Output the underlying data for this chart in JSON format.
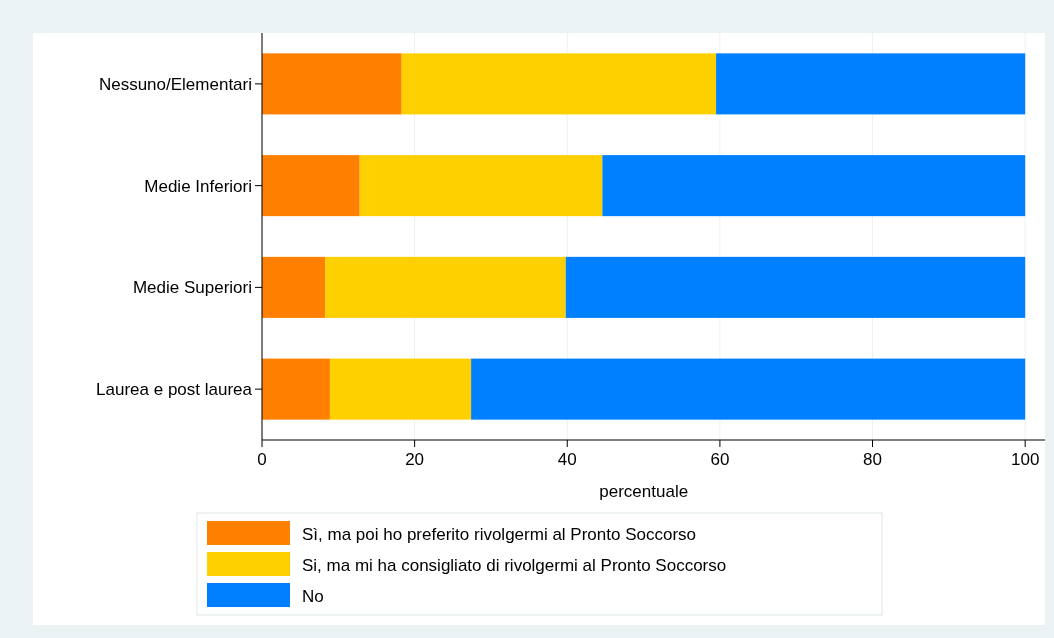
{
  "chart_data": {
    "type": "bar",
    "orientation": "horizontal",
    "stacked": true,
    "xlabel": "percentuale",
    "categories": [
      "Nessuno/Elementari",
      "Medie Inferiori",
      "Medie Superiori",
      "Laurea e post laurea"
    ],
    "series": [
      {
        "name": "Sì, ma poi ho preferito rivolgermi al Pronto Soccorso",
        "color": "#ff7f00",
        "values": [
          18.3,
          12.8,
          8.3,
          8.9
        ]
      },
      {
        "name": "Si, ma mi ha consigliato di rivolgermi al Pronto Soccorso",
        "color": "#ffd000",
        "values": [
          41.2,
          31.8,
          31.5,
          18.5
        ]
      },
      {
        "name": "No",
        "color": "#0080ff",
        "values": [
          40.5,
          55.4,
          60.2,
          72.6
        ]
      }
    ],
    "xlim": [
      0,
      102.6
    ],
    "xticks": [
      0,
      20,
      40,
      60,
      80,
      100
    ],
    "grid": "x",
    "legend": "bottom"
  }
}
